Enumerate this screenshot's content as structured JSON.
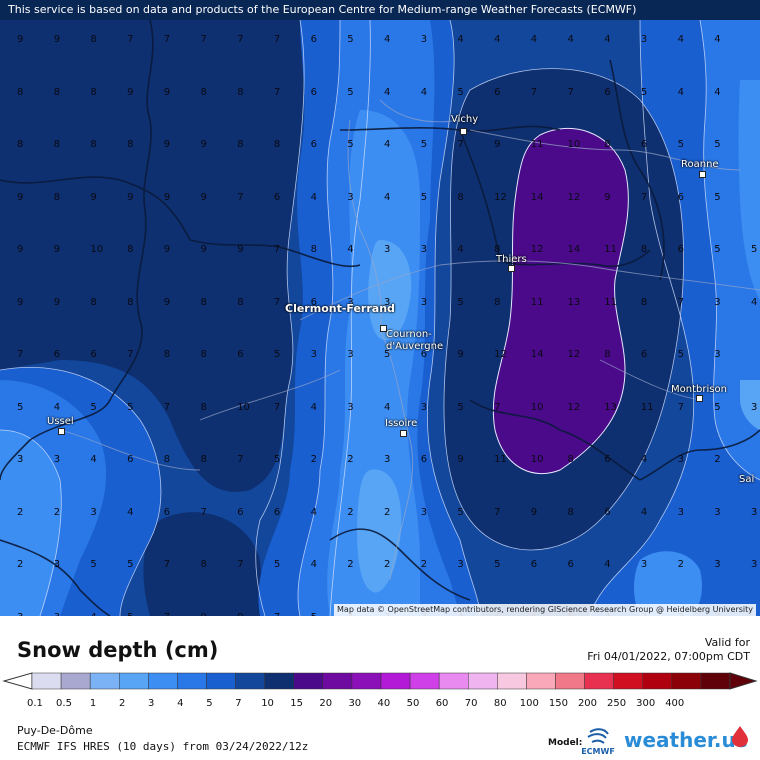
{
  "banner": "This service is based on data and products of the European Centre for Medium-range Weather Forecasts (ECMWF)",
  "attribution": "Map data © OpenStreetMap contributors, rendering GIScience Research Group @ Heidelberg University",
  "cities": [
    {
      "name": "Vichy",
      "big": false
    },
    {
      "name": "Roanne",
      "big": false
    },
    {
      "name": "Thiers",
      "big": false
    },
    {
      "name": "Clermont-Ferrand",
      "big": true
    },
    {
      "name": "Cournon-",
      "big": false
    },
    {
      "name": "d'Auvergne",
      "big": false
    },
    {
      "name": "Montbrison",
      "big": false
    },
    {
      "name": "Ussel",
      "big": false
    },
    {
      "name": "Issoire",
      "big": false
    },
    {
      "name": "Sai",
      "big": false
    }
  ],
  "grid_values": [
    [
      "9",
      "9",
      "8",
      "7",
      "7",
      "7",
      "7",
      "7",
      "6",
      "5",
      "4",
      "3",
      "4",
      "4",
      "4",
      "4",
      "4",
      "3",
      "4",
      "4"
    ],
    [
      "8",
      "8",
      "8",
      "9",
      "9",
      "8",
      "8",
      "7",
      "6",
      "5",
      "4",
      "4",
      "5",
      "6",
      "7",
      "7",
      "6",
      "5",
      "4",
      "4"
    ],
    [
      "8",
      "8",
      "8",
      "8",
      "9",
      "9",
      "8",
      "8",
      "6",
      "5",
      "4",
      "5",
      "7",
      "9",
      "11",
      "10",
      "8",
      "6",
      "5",
      "5"
    ],
    [
      "9",
      "8",
      "9",
      "9",
      "9",
      "9",
      "7",
      "6",
      "4",
      "3",
      "4",
      "5",
      "8",
      "12",
      "14",
      "12",
      "9",
      "7",
      "6",
      "5"
    ],
    [
      "9",
      "9",
      "10",
      "8",
      "9",
      "9",
      "9",
      "7",
      "8",
      "4",
      "3",
      "3",
      "4",
      "8",
      "12",
      "14",
      "11",
      "8",
      "6",
      "5",
      "5"
    ],
    [
      "9",
      "9",
      "8",
      "8",
      "9",
      "8",
      "8",
      "7",
      "6",
      "3",
      "3",
      "3",
      "5",
      "8",
      "11",
      "13",
      "11",
      "8",
      "7",
      "3",
      "4"
    ],
    [
      "7",
      "6",
      "6",
      "7",
      "8",
      "8",
      "6",
      "5",
      "3",
      "3",
      "5",
      "6",
      "9",
      "12",
      "14",
      "12",
      "8",
      "6",
      "5",
      "3"
    ],
    [
      "5",
      "4",
      "5",
      "5",
      "7",
      "8",
      "10",
      "7",
      "4",
      "3",
      "4",
      "3",
      "5",
      "7",
      "10",
      "12",
      "13",
      "11",
      "7",
      "5",
      "3",
      "2"
    ],
    [
      "3",
      "3",
      "4",
      "6",
      "8",
      "8",
      "7",
      "5",
      "2",
      "2",
      "3",
      "6",
      "9",
      "11",
      "10",
      "8",
      "6",
      "4",
      "3",
      "2"
    ],
    [
      "2",
      "2",
      "3",
      "4",
      "6",
      "7",
      "6",
      "6",
      "4",
      "2",
      "2",
      "3",
      "5",
      "7",
      "9",
      "8",
      "6",
      "4",
      "3",
      "3",
      "3"
    ],
    [
      "2",
      "3",
      "5",
      "5",
      "7",
      "8",
      "7",
      "5",
      "4",
      "2",
      "2",
      "2",
      "3",
      "5",
      "6",
      "6",
      "4",
      "3",
      "2",
      "3",
      "3"
    ],
    [
      "3",
      "3",
      "4",
      "5",
      "7",
      "9",
      "9",
      "7",
      "5",
      "4",
      "3",
      "3",
      "4",
      "6",
      "6",
      "5",
      "4",
      "3",
      "3",
      "3"
    ]
  ],
  "legend": {
    "title": "Snow depth (cm)",
    "valid_label": "Valid for",
    "valid_time": "Fri 04/01/2022, 07:00pm CDT",
    "ticks": [
      "0.1",
      "0.5",
      "1",
      "2",
      "3",
      "4",
      "5",
      "7",
      "10",
      "15",
      "20",
      "30",
      "40",
      "50",
      "60",
      "70",
      "80",
      "100",
      "150",
      "200",
      "250",
      "300",
      "400"
    ],
    "colors": [
      "#dcdcf0",
      "#a8a8d0",
      "#7bb2f5",
      "#58a5f5",
      "#3d8ef2",
      "#2a78e8",
      "#1a5fd0",
      "#12479c",
      "#0e2f70",
      "#4a0a8a",
      "#6e0aa0",
      "#8c10b8",
      "#b21ad8",
      "#d040e8",
      "#e88af0",
      "#f0b4f0",
      "#f8c8e0",
      "#f8a8b8",
      "#f07888",
      "#e83050",
      "#d01020",
      "#b00010",
      "#8c0008",
      "#600008"
    ]
  },
  "region": "Puy-De-Dôme",
  "model_run": "ECMWF IFS HRES (10 days) from 03/24/2022/12z",
  "model_label": "Model:",
  "ecmwf_text": "ECMWF",
  "brand": "weather.us"
}
